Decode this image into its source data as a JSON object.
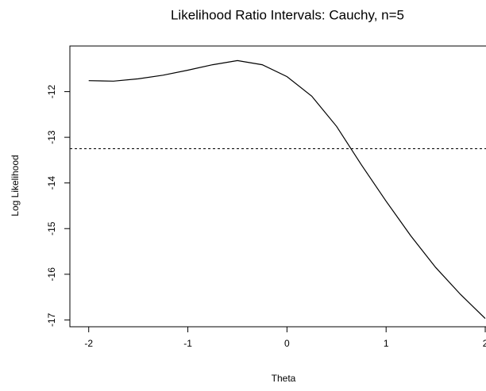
{
  "chart_data": {
    "type": "line",
    "title": "Likelihood Ratio Intervals: Cauchy, n=5",
    "x_label": "Theta",
    "y_label": "Log Likelihood",
    "x": [
      -2,
      -1.75,
      -1.5,
      -1.25,
      -1,
      -0.75,
      -0.5,
      -0.25,
      0,
      0.25,
      0.5,
      0.75,
      1,
      1.25,
      1.5,
      1.75,
      2
    ],
    "values": [
      -11.76,
      -11.77,
      -11.72,
      -11.64,
      -11.53,
      -11.41,
      -11.32,
      -11.41,
      -11.67,
      -12.1,
      -12.76,
      -13.6,
      -14.4,
      -15.16,
      -15.85,
      -16.44,
      -16.97
    ],
    "color": "#000000",
    "hline": -13.25,
    "xlim": [
      -2.19,
      2.2
    ],
    "xticks": [
      -2,
      -1,
      0,
      1,
      2
    ],
    "ylim": [
      -17.15,
      -11.0
    ],
    "yticks": [
      -17,
      -16,
      -15,
      -14,
      -13,
      -12
    ]
  }
}
